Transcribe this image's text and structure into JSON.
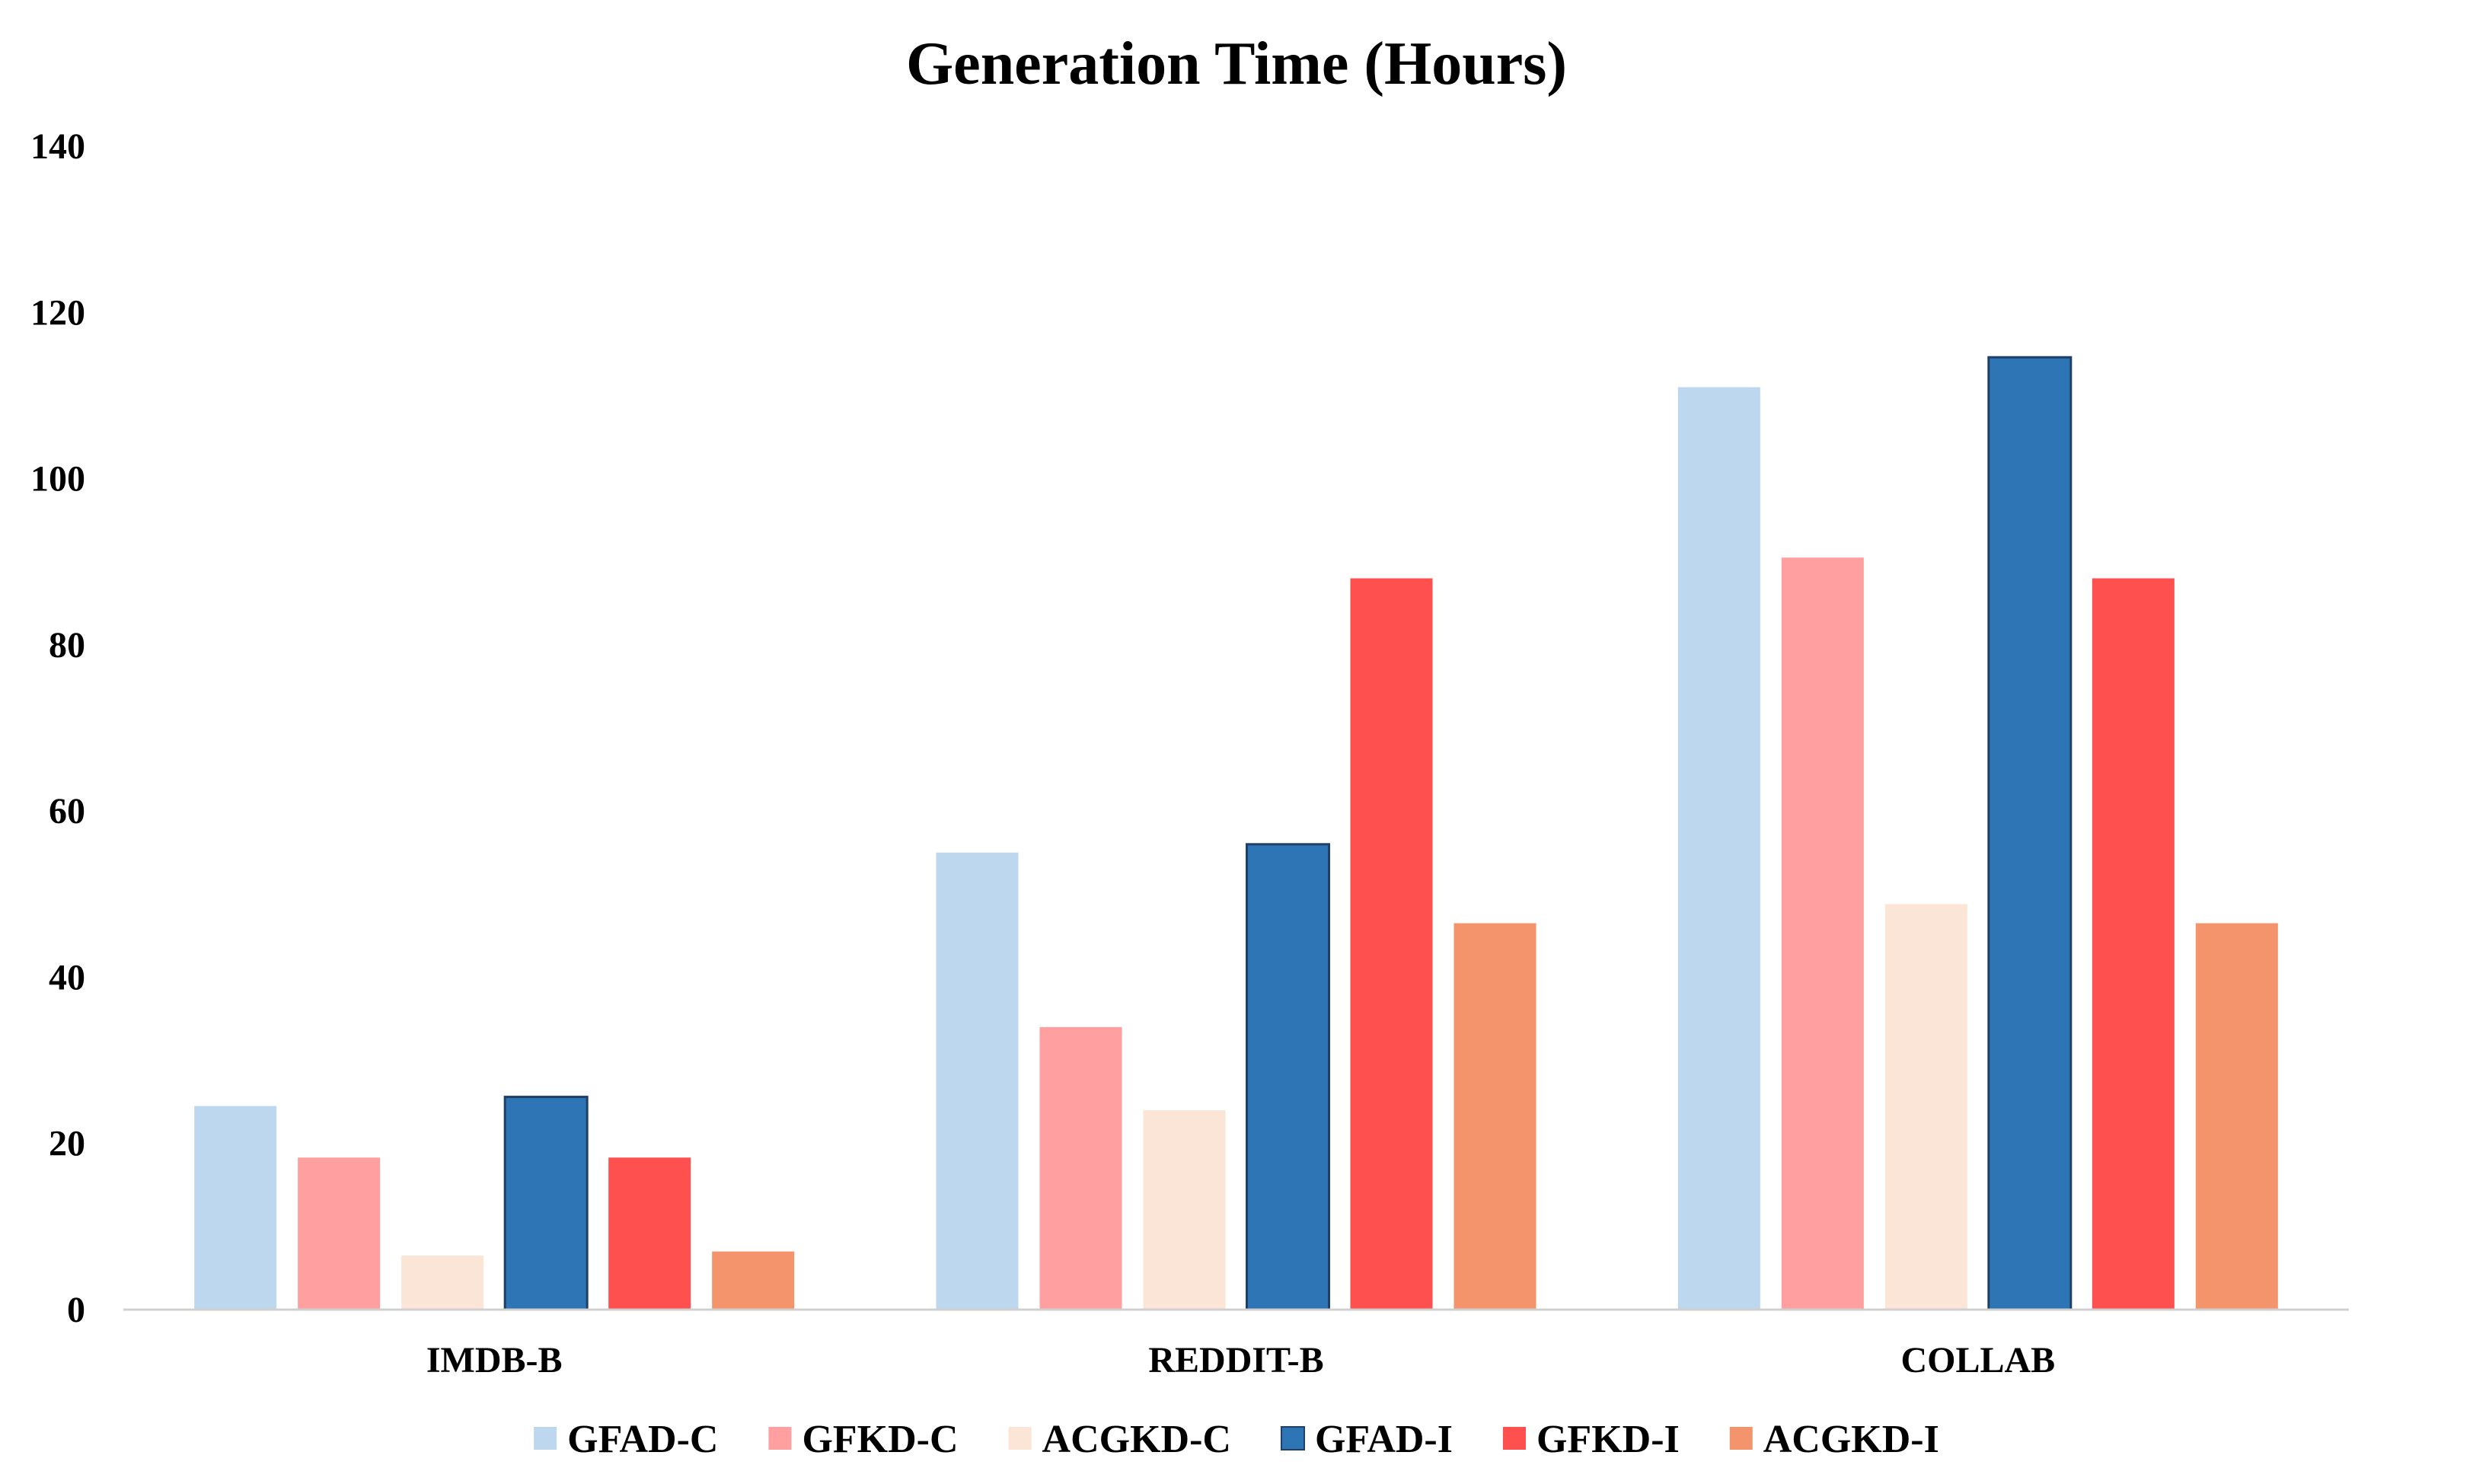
{
  "chart_data": {
    "type": "bar",
    "title": "Generation Time (Hours)",
    "xlabel": "",
    "ylabel": "",
    "ylim": [
      0,
      140
    ],
    "yticks": [
      "0",
      "20",
      "40",
      "60",
      "80",
      "100",
      "120",
      "140"
    ],
    "ytick_values": [
      0,
      20,
      40,
      60,
      80,
      100,
      120,
      140
    ],
    "categories": [
      "IMDB-B",
      "REDDIT-B",
      "COLLAB"
    ],
    "grid": false,
    "legend_position": "bottom",
    "series": [
      {
        "name": "GFAD-C",
        "color": "#BDD7EE",
        "values": [
          24.5,
          55,
          111
        ]
      },
      {
        "name": "GFKD-C",
        "color": "#FF9F9F",
        "values": [
          18.3,
          34,
          90.5
        ]
      },
      {
        "name": "ACGKD-C",
        "color": "#FBE5D6",
        "values": [
          6.5,
          24,
          48.8
        ]
      },
      {
        "name": "GFAD-I",
        "color": "#2E75B6",
        "values": [
          25.6,
          56,
          114.6
        ]
      },
      {
        "name": "GFKD-I",
        "color": "#FF5050",
        "values": [
          18.3,
          88,
          88
        ]
      },
      {
        "name": "ACGKD-I",
        "color": "#F4946C",
        "values": [
          7,
          46.5,
          46.5
        ]
      }
    ]
  }
}
